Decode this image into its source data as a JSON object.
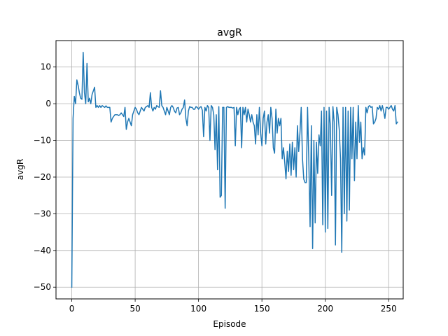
{
  "chart_data": {
    "type": "line",
    "title": "avgR",
    "xlabel": "Episode",
    "ylabel": "avgR",
    "xlim": [
      -12.45,
      261.45
    ],
    "ylim": [
      -53.2,
      17.2
    ],
    "grid": true,
    "x_ticks": [
      0,
      50,
      100,
      150,
      200,
      250
    ],
    "y_ticks": [
      -50,
      -40,
      -30,
      -20,
      -10,
      0,
      10
    ],
    "x_tick_labels": [
      "0",
      "50",
      "100",
      "150",
      "200",
      "250"
    ],
    "y_tick_labels": [
      "−50",
      "−40",
      "−30",
      "−20",
      "−10",
      "0",
      "10"
    ],
    "series": [
      {
        "name": "avgR",
        "color": "#1f77b4",
        "x_start": 0,
        "values": [
          -50,
          -4,
          2,
          0,
          6.5,
          5,
          3,
          1.5,
          1.2,
          14,
          3,
          0,
          11,
          0.5,
          1.5,
          0,
          2.5,
          3.5,
          4.5,
          -1,
          -0.5,
          -1,
          -0.5,
          -1,
          -0.5,
          -0.8,
          -1,
          -0.6,
          -1,
          -1,
          -1,
          -5,
          -4,
          -3.5,
          -3,
          -3,
          -3,
          -3.2,
          -3,
          -2.5,
          -3,
          -3.5,
          -1,
          -7,
          -5,
          -4,
          -5,
          -6,
          -3,
          -2,
          -1,
          -1.5,
          -2.5,
          -3,
          -2,
          -1,
          -1.5,
          -2,
          -1,
          -0.8,
          -0.5,
          -1,
          3,
          -1,
          -2,
          -1,
          -1.5,
          -0.5,
          -0.8,
          -1,
          3.5,
          -0.5,
          -1,
          -2,
          -3,
          -1,
          -2,
          -3,
          -1,
          -0.5,
          -1,
          -2,
          -2.5,
          -1.2,
          -1,
          -3,
          -2.5,
          -1.5,
          -1,
          1,
          -4,
          -6,
          -2,
          -0.8,
          -1,
          -1,
          -1.5,
          -1.5,
          -0.8,
          -1,
          -1.5,
          -1,
          -0.8,
          -1.8,
          -9,
          -1,
          -2,
          -0.5,
          -1,
          -10,
          -0.5,
          -1,
          -3,
          -12.5,
          -3,
          -18,
          -0.8,
          -25.5,
          -25,
          -1,
          -1,
          -28.5,
          -1,
          -0.8,
          -1,
          -1,
          -1,
          -1.2,
          -1,
          -11.5,
          -1,
          -3,
          -1.5,
          -1,
          -12,
          -1,
          -3,
          -1,
          -5,
          -1.5,
          -3,
          -5,
          -3,
          -5,
          -6,
          -11,
          -3,
          -8.5,
          -1,
          -8,
          -11.5,
          -4,
          -2,
          -11,
          -5,
          -3,
          -8,
          -1,
          -4,
          -12,
          -13.5,
          -1.5,
          -8,
          -4,
          -6,
          -4,
          -15,
          -12,
          -16,
          -20.5,
          -13,
          -18.5,
          -11,
          -19.5,
          -10.5,
          -18,
          -12,
          -20,
          -6,
          -13,
          -8,
          -1,
          -15,
          -20.5,
          -21.5,
          -21.5,
          -1,
          -15.5,
          -33.5,
          -6,
          -39.5,
          -10,
          -32.5,
          -10.5,
          -19,
          -8.5,
          -11.5,
          -2,
          -33,
          -1,
          -35,
          -2,
          -34,
          -1,
          -6,
          -25,
          -0.8,
          -5,
          -38.5,
          -1,
          -3,
          -7,
          -15,
          -40.5,
          -1,
          -30,
          -1,
          -32,
          -2,
          -29,
          -1,
          -15,
          -1,
          -21,
          -5,
          -15,
          -0.5,
          -10.5,
          -5,
          -15,
          -12,
          -14,
          -1,
          -2.5,
          -0.8,
          -0.5,
          -1,
          -0.8,
          -5.5,
          -5,
          -4,
          -1,
          -1.5,
          -0.5,
          -2,
          -0.5,
          -2,
          -4,
          -1,
          -1,
          -1.5,
          -1,
          -0.5,
          -1.5,
          -2,
          -0.5,
          -5.5,
          -5
        ]
      }
    ]
  }
}
